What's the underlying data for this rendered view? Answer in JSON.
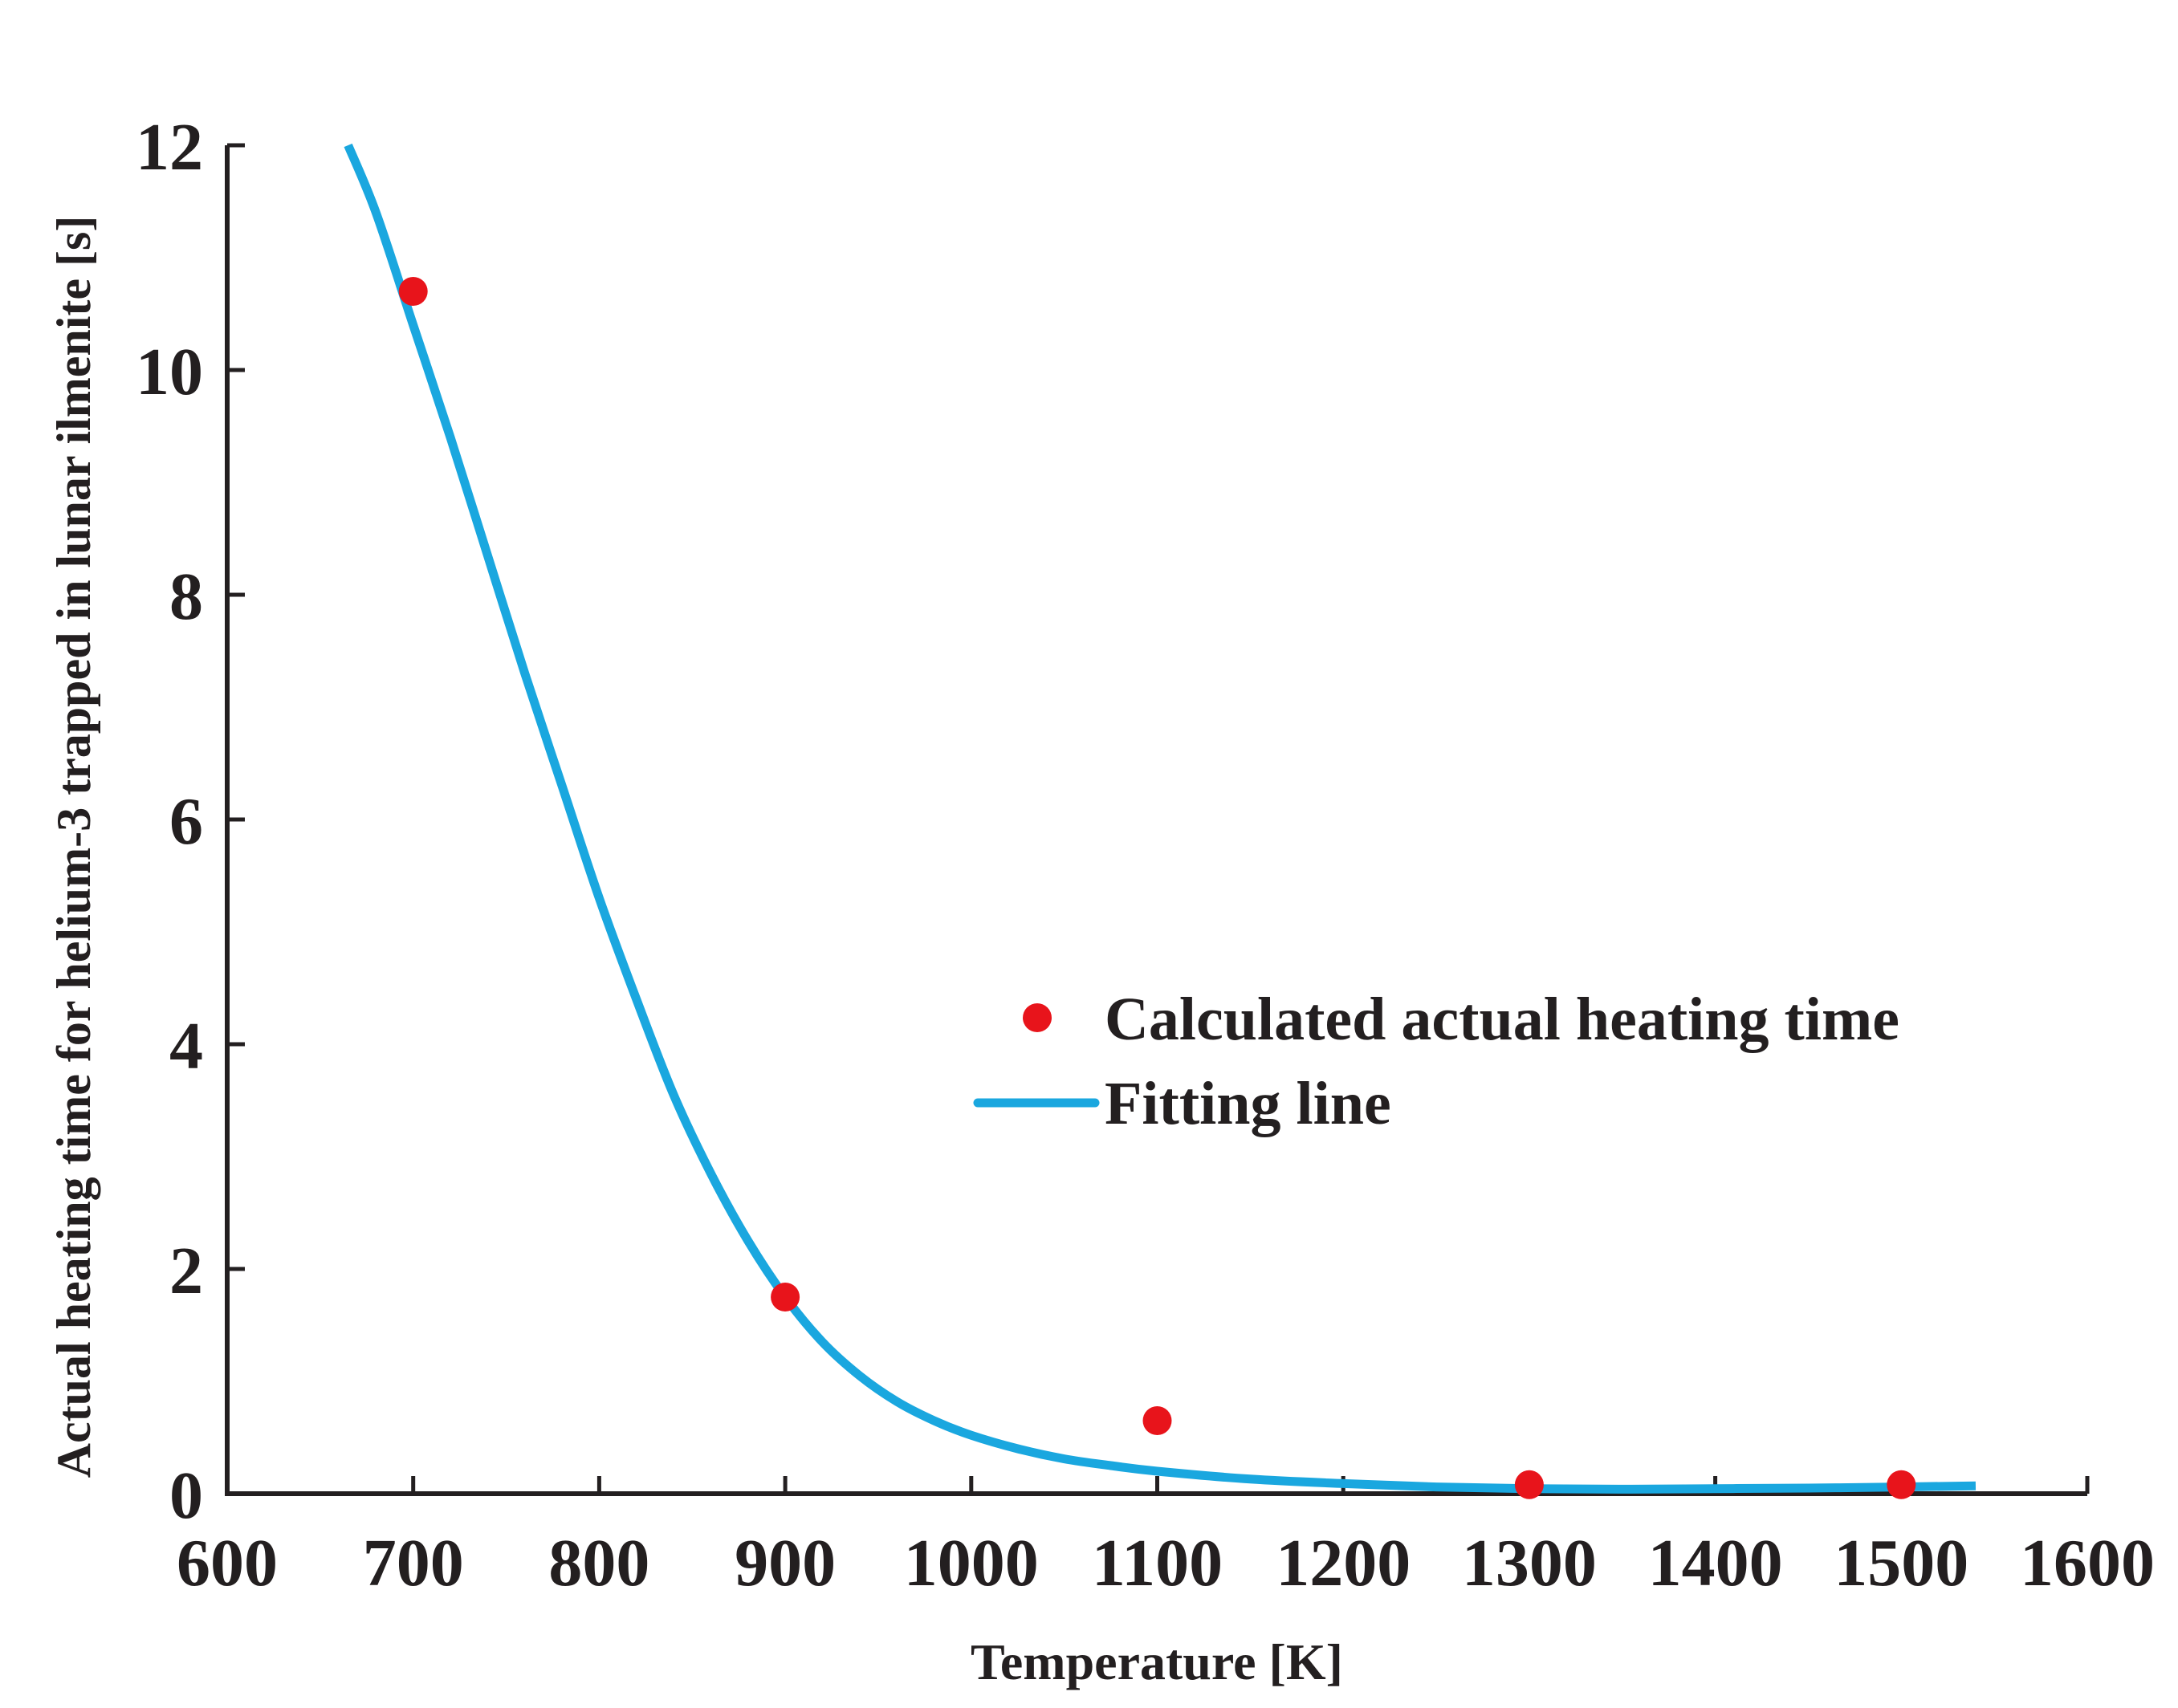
{
  "chart_data": {
    "type": "scatter",
    "xlabel": "Temperature [K]",
    "ylabel": "Actual heating time for helium-3 trapped in lunar ilmenite [s]",
    "xlim": [
      600,
      1600
    ],
    "ylim": [
      0,
      12
    ],
    "xticks": [
      600,
      700,
      800,
      900,
      1000,
      1100,
      1200,
      1300,
      1400,
      1500,
      1600
    ],
    "yticks": [
      0,
      2,
      4,
      6,
      8,
      10,
      12
    ],
    "xtick_labels": [
      "600",
      "700",
      "800",
      "900",
      "1000",
      "1100",
      "1200",
      "1300",
      "1400",
      "1500",
      "1600"
    ],
    "ytick_labels": [
      "0",
      "2",
      "4",
      "6",
      "8",
      "10",
      "12"
    ],
    "series": [
      {
        "name": "Calculated actual heating time",
        "kind": "scatter",
        "color": "#e8141b",
        "x": [
          700,
          900,
          1100,
          1300,
          1500
        ],
        "y": [
          10.7,
          1.75,
          0.65,
          0.08,
          0.08
        ]
      },
      {
        "name": "Fitting line",
        "kind": "line",
        "color": "#1aa7df",
        "x": [
          665,
          680,
          700,
          720,
          740,
          760,
          780,
          800,
          820,
          840,
          860,
          880,
          900,
          920,
          940,
          960,
          980,
          1000,
          1025,
          1050,
          1075,
          1100,
          1150,
          1200,
          1250,
          1300,
          1350,
          1400,
          1450,
          1500,
          1540
        ],
        "y": [
          12.0,
          11.4,
          10.4,
          9.4,
          8.35,
          7.3,
          6.3,
          5.3,
          4.4,
          3.55,
          2.85,
          2.25,
          1.75,
          1.35,
          1.05,
          0.82,
          0.65,
          0.52,
          0.4,
          0.31,
          0.25,
          0.2,
          0.13,
          0.09,
          0.06,
          0.045,
          0.04,
          0.045,
          0.05,
          0.06,
          0.07
        ]
      }
    ],
    "legend": {
      "position": "center-right",
      "entries": [
        "Calculated actual heating time",
        "Fitting line"
      ]
    },
    "grid": false
  }
}
